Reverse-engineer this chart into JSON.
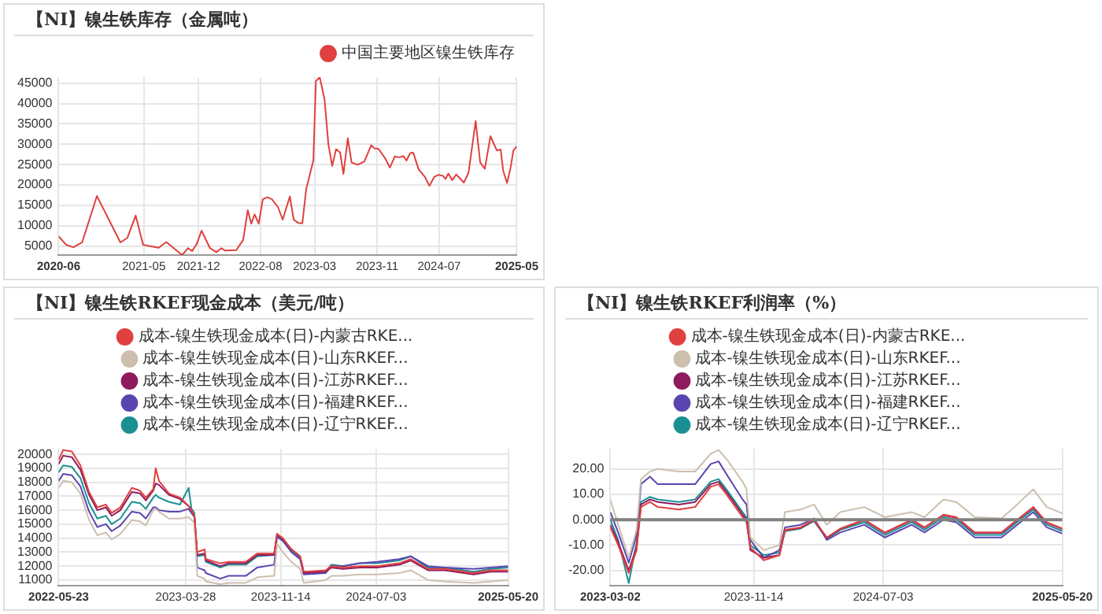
{
  "chart_data": [
    {
      "type": "line",
      "title": "【NI】镍生铁库存（金属吨）",
      "legend": "top right",
      "grid": true,
      "x": [
        "2020-06-01",
        "2020-07-01",
        "2020-07-29",
        "2020-09-01",
        "2020-10-29",
        "2021-01-29",
        "2021-02-25",
        "2021-03-30",
        "2021-04-28",
        "2021-06-28",
        "2021-07-28",
        "2021-09-28",
        "2021-10-21",
        "2021-11-06",
        "2021-11-24",
        "2021-12-13",
        "2022-01-15",
        "2022-02-09",
        "2022-03-01",
        "2022-03-15",
        "2022-04-28",
        "2022-05-25",
        "2022-06-12",
        "2022-06-26",
        "2022-07-09",
        "2022-07-25",
        "2022-08-10",
        "2022-08-28",
        "2022-09-15",
        "2022-10-09",
        "2022-10-27",
        "2022-11-24",
        "2022-12-09",
        "2022-12-27",
        "2023-01-12",
        "2023-01-27",
        "2023-02-24",
        "2023-03-06",
        "2023-03-21",
        "2023-04-09",
        "2023-04-24",
        "2023-05-09",
        "2023-05-24",
        "2023-06-09",
        "2023-06-22",
        "2023-07-09",
        "2023-07-24",
        "2023-08-18",
        "2023-09-12",
        "2023-10-09",
        "2023-10-21",
        "2023-11-06",
        "2023-12-03",
        "2023-12-21",
        "2024-01-09",
        "2024-01-27",
        "2024-02-12",
        "2024-02-24",
        "2024-03-09",
        "2024-03-21",
        "2024-04-12",
        "2024-05-06",
        "2024-05-24",
        "2024-06-12",
        "2024-06-29",
        "2024-07-15",
        "2024-07-26",
        "2024-08-06",
        "2024-08-21",
        "2024-09-06",
        "2024-09-18",
        "2024-10-06",
        "2024-10-24",
        "2024-11-21",
        "2024-12-09",
        "2024-12-27",
        "2025-01-18",
        "2025-02-12",
        "2025-02-27",
        "2025-03-09",
        "2025-03-24",
        "2025-04-06",
        "2025-04-18",
        "2025-05-01"
      ],
      "series": [
        {
          "name": "中国主要地区镍生铁库存",
          "color": "#e0403f",
          "values": [
            7400,
            5300,
            4700,
            5900,
            17300,
            5900,
            7000,
            12500,
            5300,
            4600,
            6000,
            2800,
            4500,
            3800,
            5500,
            8800,
            4500,
            3500,
            4500,
            3900,
            4000,
            6500,
            13800,
            10500,
            12800,
            10500,
            16500,
            17000,
            16500,
            14500,
            11500,
            17200,
            11500,
            10700,
            10600,
            19000,
            26000,
            45500,
            46500,
            41000,
            30000,
            24700,
            28800,
            28000,
            22700,
            31500,
            25500,
            25000,
            25800,
            29800,
            29000,
            28900,
            26500,
            24300,
            27000,
            26800,
            27100,
            26000,
            27800,
            28000,
            23800,
            22000,
            19800,
            22000,
            22500,
            22300,
            21500,
            22800,
            21200,
            22600,
            21800,
            20600,
            23000,
            35700,
            25500,
            24000,
            32000,
            28500,
            28700,
            23500,
            20500,
            24000,
            28500,
            29500
          ]
        }
      ],
      "xlim": [
        "2020-06",
        "2025-05"
      ],
      "xticks": [
        "2020-06",
        "2021-05",
        "2021-12",
        "2022-08",
        "2023-03",
        "2023-11",
        "2024-07",
        "2025-05"
      ],
      "ylim": [
        2800,
        46500
      ],
      "yticks": [
        5000,
        10000,
        15000,
        20000,
        25000,
        30000,
        35000,
        40000,
        45000
      ]
    },
    {
      "type": "line",
      "title": "【NI】镍生铁RKEF现金成本（美元/吨）",
      "legend": "top",
      "grid": true,
      "x": [
        "2022-05-23",
        "2022-06-03",
        "2022-06-24",
        "2022-07-15",
        "2022-08-05",
        "2022-08-25",
        "2022-09-15",
        "2022-09-29",
        "2022-10-20",
        "2022-11-17",
        "2022-12-07",
        "2022-12-21",
        "2023-01-08",
        "2023-01-14",
        "2023-01-22",
        "2023-02-15",
        "2023-03-14",
        "2023-04-04",
        "2023-04-11",
        "2023-04-18",
        "2023-04-25",
        "2023-05-13",
        "2023-05-16",
        "2023-06-20",
        "2023-07-10",
        "2023-08-21",
        "2023-09-18",
        "2023-10-29",
        "2023-11-05",
        "2023-11-19",
        "2023-12-10",
        "2023-12-31",
        "2024-01-09",
        "2024-03-02",
        "2024-03-16",
        "2024-04-13",
        "2024-05-24",
        "2024-07-05",
        "2024-08-28",
        "2024-09-25",
        "2024-11-06",
        "2024-12-17",
        "2025-02-25",
        "2025-04-07",
        "2025-05-20"
      ],
      "series": [
        {
          "name": "成本-镍生铁现金成本(日)-内蒙古RKE...",
          "color": "#e0403f",
          "values": [
            19600,
            20300,
            20200,
            19200,
            17300,
            16200,
            16400,
            15800,
            16200,
            17600,
            17400,
            16900,
            17500,
            19000,
            18100,
            17200,
            16900,
            16300,
            16000,
            15600,
            13000,
            13200,
            12500,
            12200,
            12300,
            12300,
            12900,
            12900,
            14300,
            14000,
            13200,
            12700,
            11600,
            11700,
            12000,
            11900,
            12000,
            12000,
            12200,
            12500,
            11800,
            11800,
            11500,
            11700,
            11700
          ]
        },
        {
          "name": "成本-镍生铁现金成本(日)-山东RKEF...",
          "color": "#cdbfae",
          "values": [
            17600,
            18100,
            18000,
            17200,
            15300,
            14200,
            14400,
            13900,
            14300,
            15300,
            15200,
            14900,
            16000,
            16100,
            15900,
            15400,
            15400,
            15500,
            15300,
            15100,
            11300,
            11100,
            10900,
            10700,
            10800,
            10800,
            11200,
            11300,
            13600,
            13000,
            12300,
            11800,
            10800,
            11000,
            11300,
            11300,
            11400,
            11400,
            11500,
            11700,
            11000,
            10900,
            10800,
            10900,
            11000
          ]
        },
        {
          "name": "成本-镍生铁现金成本(日)-江苏RKEF...",
          "color": "#8e1b5e",
          "values": [
            19300,
            19900,
            19800,
            18900,
            17100,
            16000,
            16200,
            15600,
            16000,
            17300,
            17200,
            16700,
            17400,
            17900,
            17800,
            17100,
            16800,
            16300,
            16000,
            15600,
            12800,
            12900,
            12400,
            12000,
            12200,
            12200,
            12800,
            12800,
            14300,
            13900,
            13200,
            12700,
            11500,
            11600,
            11900,
            11800,
            11900,
            11900,
            12100,
            12400,
            11700,
            11700,
            11400,
            11600,
            11600
          ]
        },
        {
          "name": "成本-镍生铁现金成本(日)-福建RKEF...",
          "color": "#5a45b0",
          "values": [
            18100,
            18600,
            18500,
            17700,
            15900,
            14800,
            15000,
            14500,
            14900,
            15900,
            15800,
            15400,
            16200,
            16200,
            16000,
            15900,
            15900,
            16100,
            15800,
            15500,
            11900,
            11700,
            11500,
            11100,
            11300,
            11300,
            11900,
            12100,
            14100,
            13800,
            13000,
            12500,
            11400,
            11500,
            12000,
            12000,
            12200,
            12300,
            12500,
            12700,
            12000,
            11900,
            11800,
            11900,
            12000
          ]
        },
        {
          "name": "成本-镍生铁现金成本(日)-辽宁RKEF...",
          "color": "#1b9094",
          "values": [
            18700,
            19200,
            19100,
            18300,
            16500,
            15400,
            15600,
            15000,
            15400,
            16600,
            16500,
            16100,
            16900,
            17100,
            16900,
            16600,
            16400,
            17600,
            16100,
            15800,
            12700,
            12800,
            12300,
            11900,
            12100,
            12100,
            12700,
            12800,
            14200,
            13900,
            13100,
            12600,
            11500,
            11600,
            12100,
            12000,
            12200,
            12200,
            12400,
            12700,
            11900,
            11900,
            11600,
            11800,
            11900
          ]
        }
      ],
      "xlim": [
        "2022-05-23",
        "2025-05-20"
      ],
      "xticks": [
        "2022-05-23",
        "2023-03-28",
        "2023-11-14",
        "2024-07-03",
        "2025-05-20"
      ],
      "ylim": [
        10600,
        20400
      ],
      "yticks": [
        11000,
        12000,
        13000,
        14000,
        15000,
        16000,
        17000,
        18000,
        19000,
        20000
      ]
    },
    {
      "type": "line",
      "title": "【NI】镍生铁RKEF利润率（%）",
      "legend": "top",
      "grid": true,
      "x": [
        "2023-03-02",
        "2023-03-16",
        "2023-04-04",
        "2023-04-18",
        "2023-04-26",
        "2023-05-12",
        "2023-05-26",
        "2023-07-03",
        "2023-08-01",
        "2023-08-29",
        "2023-09-12",
        "2023-09-26",
        "2023-10-25",
        "2023-11-01",
        "2023-11-08",
        "2023-12-02",
        "2023-12-30",
        "2024-01-09",
        "2024-02-06",
        "2024-03-01",
        "2024-03-24",
        "2024-04-17",
        "2024-05-30",
        "2024-07-06",
        "2024-08-23",
        "2024-09-15",
        "2024-10-19",
        "2024-11-11",
        "2024-12-14",
        "2025-01-31",
        "2025-02-28",
        "2025-03-29",
        "2025-04-22",
        "2025-05-20"
      ],
      "series": [
        {
          "name": "成本-镍生铁现金成本(日)-内蒙古RKE...",
          "color": "#e0403f",
          "values": [
            -3,
            -10,
            -21,
            -12,
            5,
            7,
            5,
            4,
            5,
            13,
            14,
            10,
            1,
            -1,
            -11,
            -16,
            -14,
            -4,
            -3,
            0,
            -7,
            -3.5,
            0,
            -5,
            0,
            -3,
            2,
            1,
            -5,
            -5,
            0,
            5,
            -1,
            -3.5
          ]
        },
        {
          "name": "成本-镍生铁现金成本(日)-山东RKEF...",
          "color": "#cdbfae",
          "values": [
            8,
            -2,
            -15,
            -4,
            16,
            19,
            20,
            19,
            19,
            26,
            27.5,
            24,
            15,
            12,
            -7,
            -12,
            -10,
            3,
            4,
            6,
            -2,
            3,
            5,
            1,
            3,
            1,
            8,
            7,
            1,
            0.5,
            6,
            12,
            5,
            2.5
          ]
        },
        {
          "name": "成本-镍生铁现金成本(日)-江苏RKEF...",
          "color": "#8e1b5e",
          "values": [
            -2,
            -9,
            -20,
            -11,
            6,
            8,
            7,
            6,
            7,
            14,
            15,
            11,
            2,
            0,
            -12,
            -15,
            -14,
            -4.2,
            -3.2,
            -0.2,
            -7.2,
            -3.7,
            -0.2,
            -5.2,
            -0.2,
            -3.2,
            1.8,
            0.8,
            -5.2,
            -5.2,
            -0.2,
            4.8,
            -1.2,
            -3.7
          ]
        },
        {
          "name": "成本-镍生铁现金成本(日)-福建RKEF...",
          "color": "#5a45b0",
          "values": [
            3,
            -5,
            -17,
            -6,
            14,
            17,
            14,
            14,
            14,
            22,
            23,
            18,
            8,
            6,
            -8,
            -15,
            -12,
            -3,
            -2,
            0.5,
            -8,
            -5,
            -2,
            -7,
            -2,
            -5,
            0,
            -1,
            -7,
            -7,
            -2,
            3,
            -3,
            -5.5
          ]
        },
        {
          "name": "成本-镍生铁现金成本(日)-辽宁RKEF...",
          "color": "#1b9094",
          "values": [
            0,
            -8,
            -25,
            -9,
            7,
            9,
            8,
            7,
            8,
            15,
            16,
            12,
            3,
            1,
            -10,
            -14,
            -13,
            -4.5,
            -3.5,
            -0.5,
            -7.5,
            -4,
            -1,
            -6,
            -1,
            -4,
            1,
            0,
            -6,
            -6,
            -1,
            4,
            -2,
            -4.5
          ]
        }
      ],
      "xlim": [
        "2023-03-02",
        "2025-05-20"
      ],
      "xticks": [
        "2023-03-02",
        "2023-11-14",
        "2024-07-03",
        "2025-05-20"
      ],
      "ylim": [
        -26,
        28
      ],
      "yticks": [
        {
          "value": -20,
          "label": "-20.00"
        },
        {
          "value": -10,
          "label": "-10.00"
        },
        {
          "value": 0,
          "label": "0.000"
        },
        {
          "value": 10,
          "label": "10.00"
        },
        {
          "value": 20,
          "label": "20.00"
        }
      ],
      "ref_lines": [
        {
          "axis": "y",
          "value": 0,
          "color": "#808080"
        }
      ]
    }
  ]
}
